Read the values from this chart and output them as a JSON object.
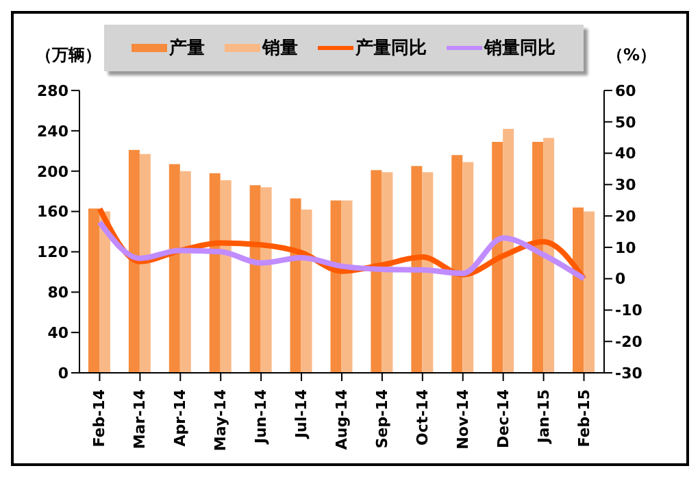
{
  "chart_data": {
    "type": "bar",
    "ylabel": "（万辆）",
    "y2label": "（%）",
    "categories": [
      "Feb-14",
      "Mar-14",
      "Apr-14",
      "May-14",
      "Jun-14",
      "Jul-14",
      "Aug-14",
      "Sep-14",
      "Oct-14",
      "Nov-14",
      "Dec-14",
      "Jan-15",
      "Feb-15"
    ],
    "series": [
      {
        "name": "产量",
        "color": "#f68b3d",
        "values": [
          163,
          221,
          207,
          198,
          186,
          173,
          171,
          201,
          205,
          216,
          229,
          229,
          164
        ]
      },
      {
        "name": "销量",
        "color": "#f9b987",
        "values": [
          160,
          217,
          200,
          191,
          184,
          162,
          171,
          199,
          199,
          209,
          242,
          233,
          160
        ]
      },
      {
        "name": "产量同比",
        "type": "line",
        "axis": "y2",
        "color": "#ff5a00",
        "values": [
          22.3,
          5.5,
          9,
          11.4,
          10.8,
          8.3,
          2.4,
          4.4,
          6.9,
          1.3,
          7.3,
          11.8,
          0
        ]
      },
      {
        "name": "销量同比",
        "type": "line",
        "axis": "y2",
        "color": "#c08cff",
        "values": [
          18,
          6.5,
          9,
          8.6,
          5,
          6.7,
          4,
          3,
          2.8,
          1.7,
          13,
          7.6,
          0
        ]
      }
    ],
    "ylim": [
      0,
      280
    ],
    "yticks": [
      0,
      40,
      80,
      120,
      160,
      200,
      240,
      280
    ],
    "y2lim": [
      -30,
      60
    ],
    "y2ticks": [
      -30,
      -20,
      -10,
      0,
      10,
      20,
      30,
      40,
      50,
      60
    ],
    "legend": "top",
    "grid": false,
    "marker": "none"
  }
}
